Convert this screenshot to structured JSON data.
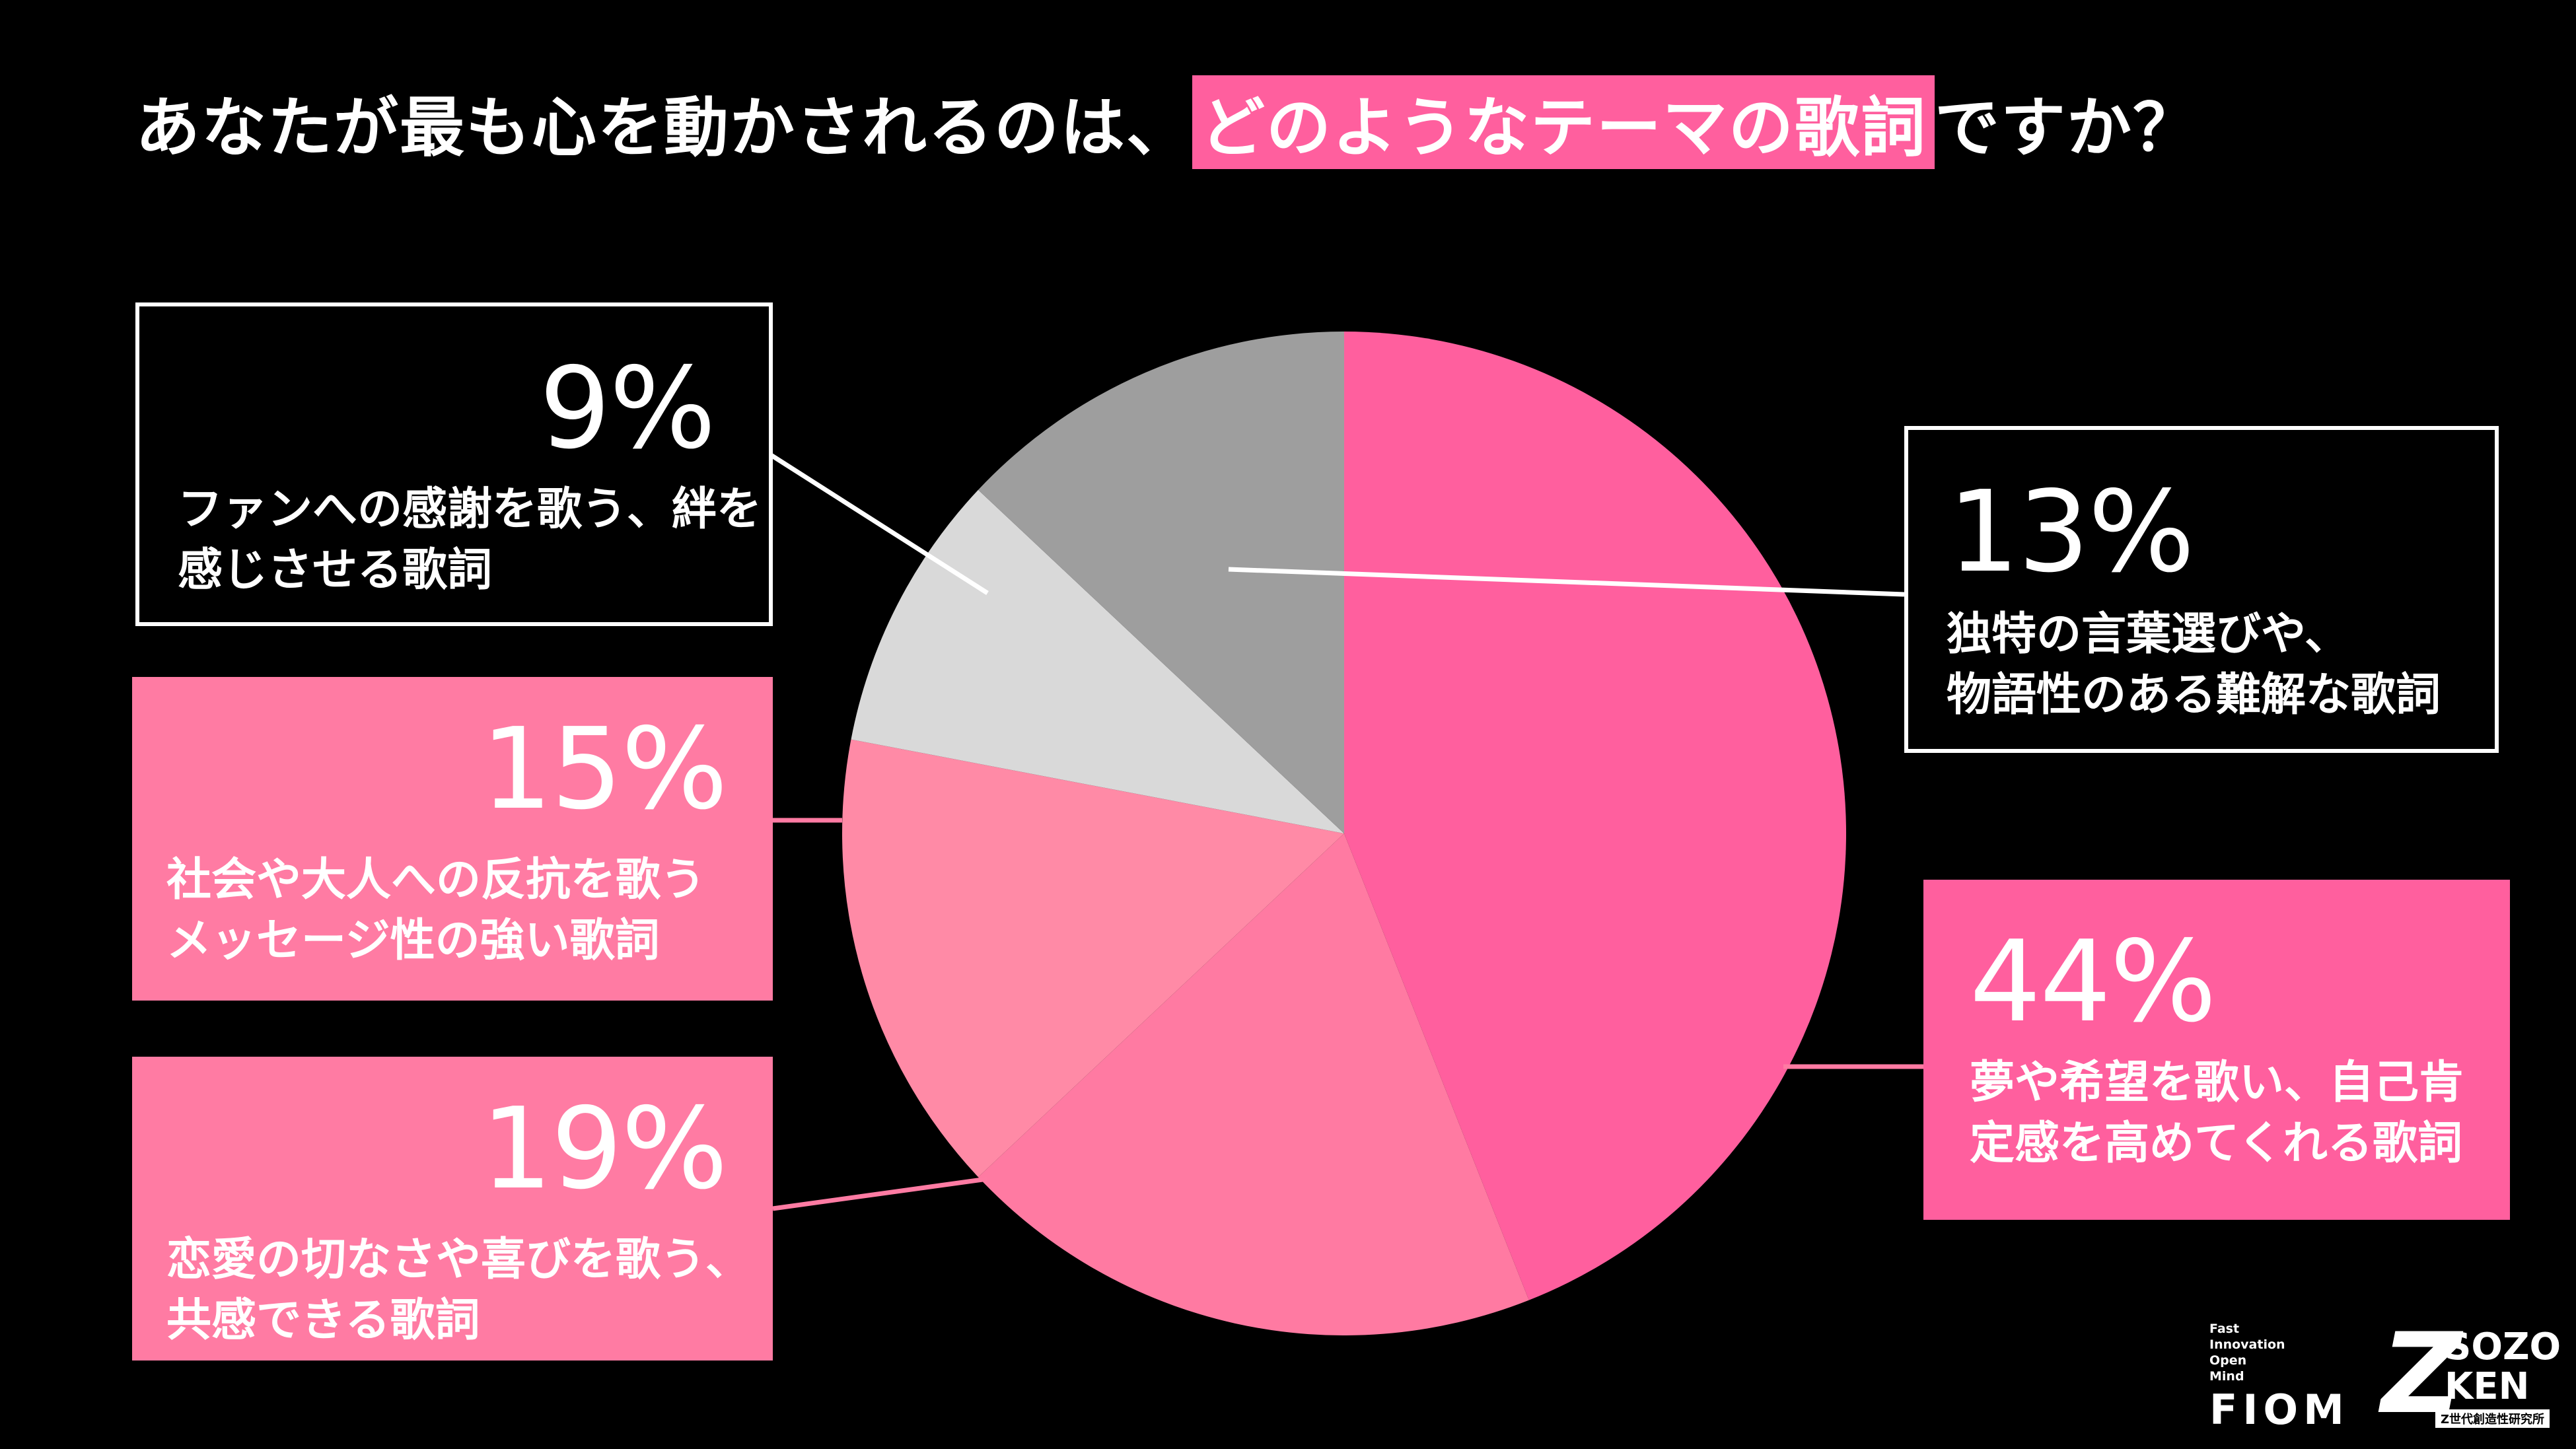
{
  "title": {
    "prefix": "あなたが最も心を動かされるのは、",
    "highlight": "どのようなテーマの歌詞",
    "suffix": "ですか？"
  },
  "colors": {
    "background": "#000000",
    "accent": "#ff5f9e"
  },
  "chart_data": {
    "type": "pie",
    "title": "あなたが最も心を動かされるのは、どのようなテーマの歌詞ですか？",
    "start": "12 o'clock, clockwise",
    "slices": [
      {
        "value": 44,
        "label": "44%",
        "line1": "夢や希望を歌い、自己肯",
        "line2": "定感を高めてくれる歌詞",
        "color": "#ff5f9e"
      },
      {
        "value": 19,
        "label": "19%",
        "line1": "恋愛の切なさや喜びを歌う、",
        "line2": "共感できる歌詞",
        "color": "#ff7aa2"
      },
      {
        "value": 15,
        "label": "15%",
        "line1": "社会や大人への反抗を歌う",
        "line2": "メッセージ性の強い歌詞",
        "color": "#ff8aa6"
      },
      {
        "value": 9,
        "label": "9%",
        "line1": "ファンへの感謝を歌う、絆を",
        "line2": "感じさせる歌詞",
        "color": "#d9d9d9"
      },
      {
        "value": 13,
        "label": "13%",
        "line1": "独特の言葉選びや、",
        "line2": "物語性のある難解な歌詞",
        "color": "#9e9e9e"
      }
    ]
  },
  "logos": {
    "fiom_lines": [
      "Fast",
      "Innovation",
      "Open",
      "Mind"
    ],
    "fiom_name": "FIOM",
    "sozo_mark": "Z",
    "sozo_word1": "SOZO",
    "sozo_word2": "KEN",
    "sozo_sub": "Z世代創造性研究所"
  }
}
